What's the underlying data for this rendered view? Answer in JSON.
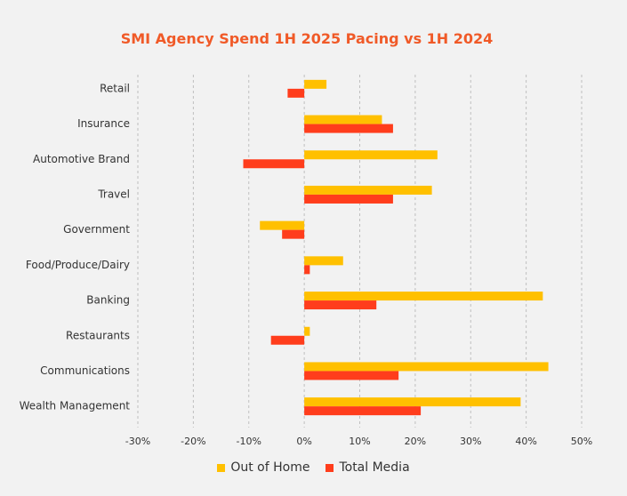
{
  "chart_data": {
    "type": "bar",
    "orientation": "horizontal",
    "title": "SMI Agency Spend 1H 2025 Pacing vs 1H 2024",
    "categories": [
      "Retail",
      "Insurance",
      "Automotive Brand",
      "Travel",
      "Government",
      "Food/Produce/Dairy",
      "Banking",
      "Restaurants",
      "Communications",
      "Wealth Management"
    ],
    "series": [
      {
        "name": "Out of Home",
        "color": "#ffc000",
        "values": [
          4,
          14,
          24,
          23,
          -8,
          7,
          43,
          1,
          44,
          39
        ]
      },
      {
        "name": "Total Media",
        "color": "#ff3d1c",
        "values": [
          -3,
          16,
          -11,
          16,
          -4,
          1,
          13,
          -6,
          17,
          21
        ]
      }
    ],
    "xlim": [
      -30,
      50
    ],
    "xticks": [
      -30,
      -20,
      -10,
      0,
      10,
      20,
      30,
      40,
      50
    ],
    "tick_suffix": "%",
    "grid": "vertical dashed",
    "legend_position": "bottom"
  }
}
